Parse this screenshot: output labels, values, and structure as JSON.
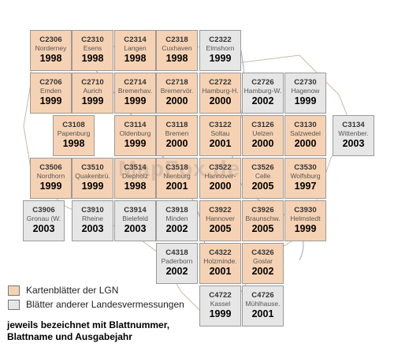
{
  "colors": {
    "lgn": "#f6d2b4",
    "other": "#e6e6e6",
    "border": "#9a9a9a",
    "river": "#a8b4c2"
  },
  "tiles": [
    {
      "code": "C2306",
      "name": "Norderney",
      "year": "1998",
      "kind": "lgn"
    },
    {
      "code": "C2310",
      "name": "Esens",
      "year": "1998",
      "kind": "lgn"
    },
    {
      "code": "C2314",
      "name": "Langen",
      "year": "1998",
      "kind": "lgn"
    },
    {
      "code": "C2318",
      "name": "Cuxhaven",
      "year": "1998",
      "kind": "lgn"
    },
    {
      "code": "C2322",
      "name": "Elmshorn",
      "year": "1999",
      "kind": "other"
    },
    {
      "code": "C2706",
      "name": "Emden",
      "year": "1999",
      "kind": "lgn"
    },
    {
      "code": "C2710",
      "name": "Aurich",
      "year": "1999",
      "kind": "lgn"
    },
    {
      "code": "C2714",
      "name": "Bremerhav.",
      "year": "1999",
      "kind": "lgn"
    },
    {
      "code": "C2718",
      "name": "Bremervör.",
      "year": "2000",
      "kind": "lgn"
    },
    {
      "code": "C2722",
      "name": "Hamburg-H.",
      "year": "2000",
      "kind": "lgn"
    },
    {
      "code": "C2726",
      "name": "Hamburg-W.",
      "year": "2002",
      "kind": "other"
    },
    {
      "code": "C2730",
      "name": "Hagenow",
      "year": "1999",
      "kind": "other"
    },
    {
      "code": "C3108",
      "name": "Papenburg",
      "year": "1998",
      "kind": "lgn"
    },
    {
      "code": "C3114",
      "name": "Oldenburg",
      "year": "1999",
      "kind": "lgn"
    },
    {
      "code": "C3118",
      "name": "Bremen",
      "year": "2000",
      "kind": "lgn"
    },
    {
      "code": "C3122",
      "name": "Soltau",
      "year": "2001",
      "kind": "lgn"
    },
    {
      "code": "C3126",
      "name": "Uelzen",
      "year": "2000",
      "kind": "lgn"
    },
    {
      "code": "C3130",
      "name": "Salzwedel",
      "year": "2000",
      "kind": "lgn"
    },
    {
      "code": "C3134",
      "name": "Wittenber.",
      "year": "2003",
      "kind": "other"
    },
    {
      "code": "C3506",
      "name": "Nordhorn",
      "year": "1999",
      "kind": "lgn"
    },
    {
      "code": "C3510",
      "name": "Quakenbrü.",
      "year": "1999",
      "kind": "lgn"
    },
    {
      "code": "C3514",
      "name": "Diepholz",
      "year": "1998",
      "kind": "lgn"
    },
    {
      "code": "C3518",
      "name": "Nienburg",
      "year": "2001",
      "kind": "lgn"
    },
    {
      "code": "C3522",
      "name": "Hannover-",
      "year": "2000",
      "kind": "lgn"
    },
    {
      "code": "C3526",
      "name": "Celle",
      "year": "2005",
      "kind": "lgn"
    },
    {
      "code": "C3530",
      "name": "Wolfsburg",
      "year": "1997",
      "kind": "lgn"
    },
    {
      "code": "C3906",
      "name": "Gronau (W.",
      "year": "2003",
      "kind": "other"
    },
    {
      "code": "C3910",
      "name": "Rheine",
      "year": "2003",
      "kind": "other"
    },
    {
      "code": "C3914",
      "name": "Bielefeld",
      "year": "2003",
      "kind": "other"
    },
    {
      "code": "C3918",
      "name": "Minden",
      "year": "2002",
      "kind": "other"
    },
    {
      "code": "C3922",
      "name": "Hannover",
      "year": "2005",
      "kind": "lgn"
    },
    {
      "code": "C3926",
      "name": "Braunschw.",
      "year": "2005",
      "kind": "lgn"
    },
    {
      "code": "C3930",
      "name": "Helmstedt",
      "year": "1999",
      "kind": "lgn"
    },
    {
      "code": "C4318",
      "name": "Paderborn",
      "year": "2002",
      "kind": "other"
    },
    {
      "code": "C4322",
      "name": "Holzminde.",
      "year": "2001",
      "kind": "lgn"
    },
    {
      "code": "C4326",
      "name": "Goslar",
      "year": "2002",
      "kind": "lgn"
    },
    {
      "code": "C4722",
      "name": "Kassel",
      "year": "1999",
      "kind": "other"
    },
    {
      "code": "C4726",
      "name": "Mühlhause.",
      "year": "2001",
      "kind": "other"
    }
  ],
  "watermark": "MapFox.de",
  "legend": {
    "lgn_label": "Kartenblätter der LGN",
    "other_label": "Blätter anderer Landesvermessungen"
  },
  "footnote": {
    "line1": "jeweils bezeichnet mit Blattnummer,",
    "line2": "Blattname und Ausgabejahr"
  }
}
